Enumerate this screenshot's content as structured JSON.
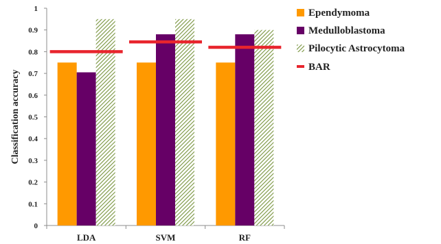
{
  "chart_data": {
    "type": "bar",
    "title": "",
    "ylabel": "Classification  accuracy",
    "xlabel": "",
    "categories": [
      "LDA",
      "SVM",
      "RF"
    ],
    "ylim": [
      0,
      1
    ],
    "yticks": [
      "0",
      "0.1",
      "0.2",
      "0.3",
      "0.4",
      "0.5",
      "0.6",
      "0.7",
      "0.8",
      "0.9",
      "1"
    ],
    "series": [
      {
        "name": "Ependymoma",
        "values": [
          0.75,
          0.75,
          0.75
        ],
        "color": "#FF9900",
        "pattern": "solid"
      },
      {
        "name": "Medulloblastoma",
        "values": [
          0.705,
          0.88,
          0.88
        ],
        "color": "#660066",
        "pattern": "solid"
      },
      {
        "name": "Pilocytic Astrocytoma",
        "values": [
          0.95,
          0.95,
          0.9
        ],
        "color": "#77933C",
        "pattern": "diagonal-hatch"
      }
    ],
    "reference_lines": [
      {
        "name": "BAR",
        "values": [
          0.8,
          0.845,
          0.82
        ],
        "color": "#E8252D"
      }
    ],
    "grid": false,
    "legend_position": "right"
  }
}
